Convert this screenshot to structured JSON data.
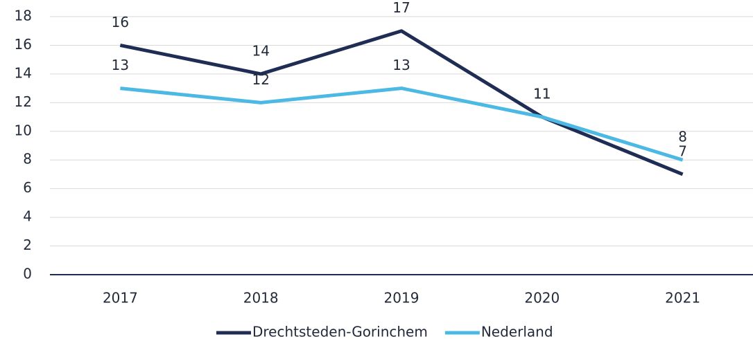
{
  "chart_data": {
    "type": "line",
    "categories": [
      "2017",
      "2018",
      "2019",
      "2020",
      "2021"
    ],
    "series": [
      {
        "name": "Drechtsteden-Gorinchem",
        "color": "#1f2d55",
        "values": [
          16,
          14,
          17,
          11,
          7
        ]
      },
      {
        "name": "Nederland",
        "color": "#4cb8e4",
        "values": [
          13,
          12,
          13,
          11,
          8
        ]
      }
    ],
    "ylim": [
      0,
      18
    ],
    "yticks": [
      0,
      2,
      4,
      6,
      8,
      10,
      12,
      14,
      16,
      18
    ],
    "grid": true,
    "legend": "bottom"
  }
}
